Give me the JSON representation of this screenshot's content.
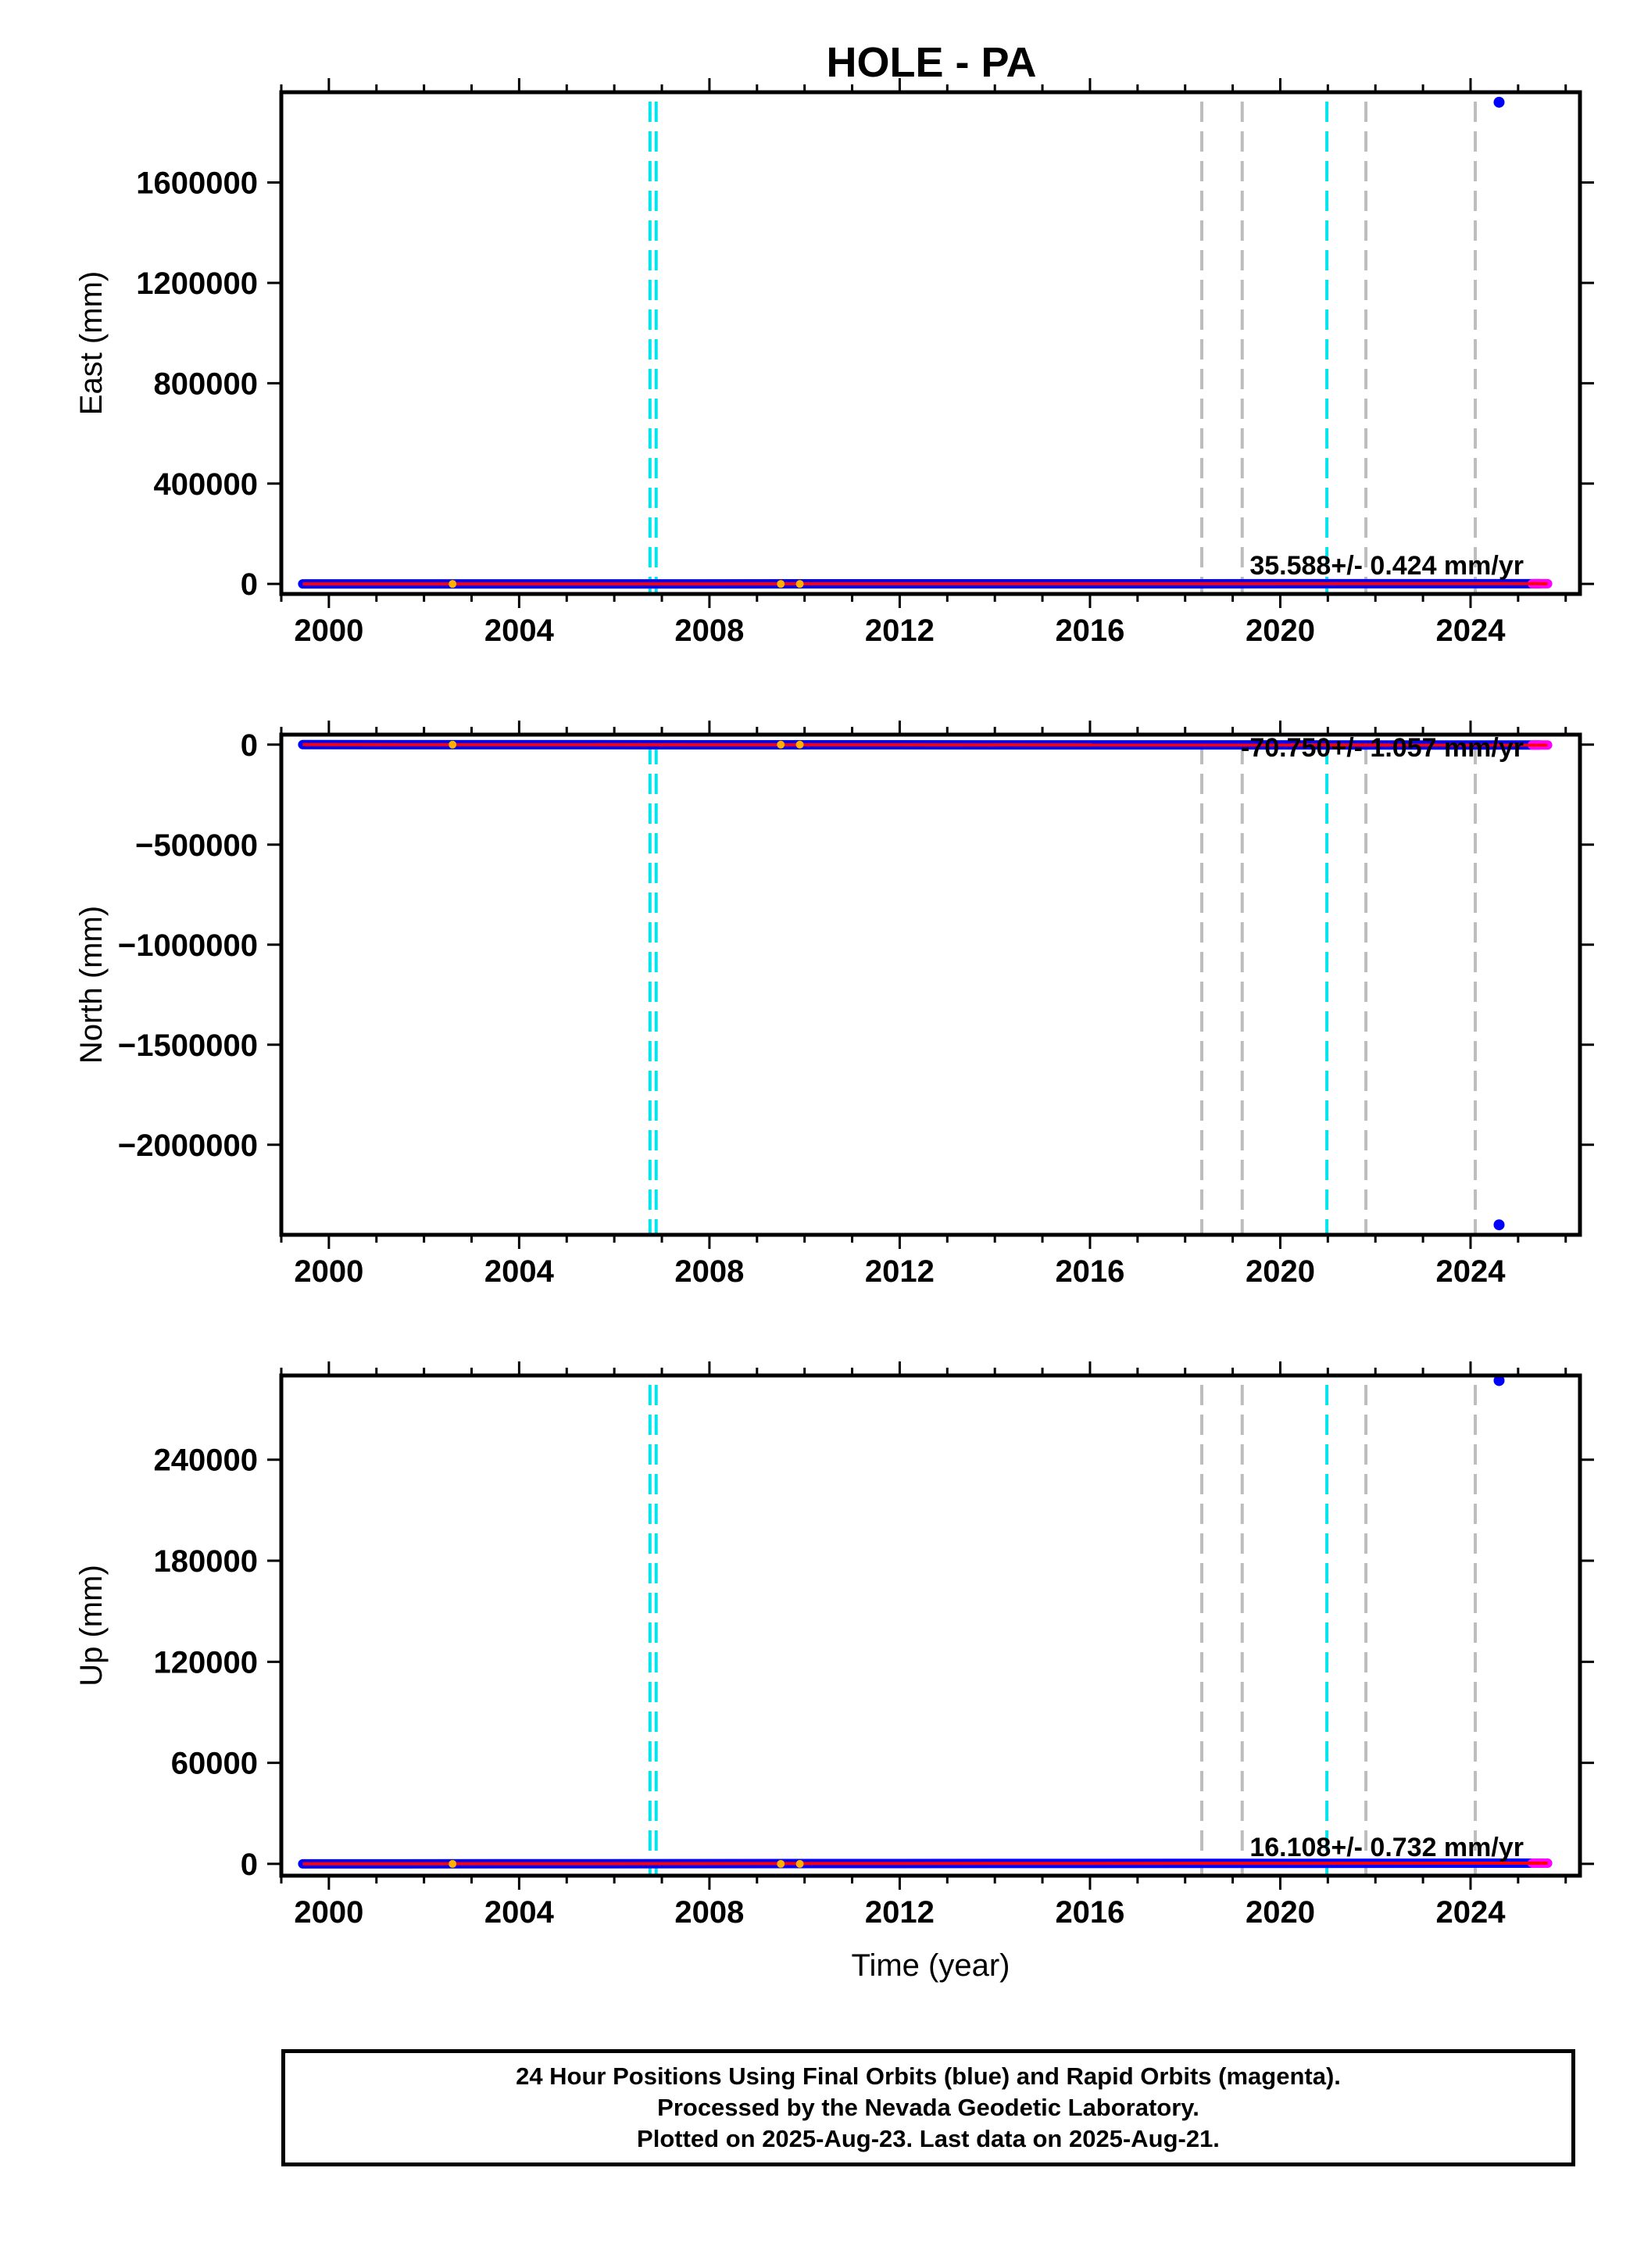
{
  "title": "HOLE - PA",
  "colors": {
    "final_orbits": "#0000ff",
    "rapid_orbits": "#ff00ff",
    "trend_line": "#ff0000",
    "antenna_change": "#00e5ee",
    "other_event": "#bdbdbd",
    "frame": "#000000"
  },
  "chart_data": [
    {
      "type": "scatter",
      "name": "east",
      "ylabel": "East (mm)",
      "xlabel": "",
      "xlim": [
        1999.0,
        2026.3
      ],
      "ylim": [
        -40000,
        1960000
      ],
      "xticks": [
        2000,
        2004,
        2008,
        2012,
        2016,
        2020,
        2024
      ],
      "xtick_labels": [
        "2000",
        "2004",
        "2008",
        "2012",
        "2016",
        "2020",
        "2024"
      ],
      "yticks": [
        0,
        400000,
        800000,
        1200000,
        1600000
      ],
      "ytick_labels": [
        "0",
        "400000",
        "800000",
        "1200000",
        "1600000"
      ],
      "rate_label": "35.588+/- 0.424 mm/yr",
      "series": [
        {
          "name": "final orbits",
          "x": [
            1999.45,
            2025.45
          ],
          "y": [
            0,
            900
          ]
        },
        {
          "name": "rapid orbits",
          "x": [
            2025.3,
            2025.62
          ],
          "y": [
            800,
            900
          ]
        }
      ],
      "outliers": [
        {
          "x": 2024.6,
          "y": 1920000
        }
      ],
      "trend": {
        "x": [
          1999.45,
          2025.62
        ],
        "y": [
          0,
          930
        ]
      }
    },
    {
      "type": "scatter",
      "name": "north",
      "ylabel": "North (mm)",
      "xlabel": "",
      "xlim": [
        1999.0,
        2026.3
      ],
      "ylim": [
        -2450000,
        50000
      ],
      "xticks": [
        2000,
        2004,
        2008,
        2012,
        2016,
        2020,
        2024
      ],
      "xtick_labels": [
        "2000",
        "2004",
        "2008",
        "2012",
        "2016",
        "2020",
        "2024"
      ],
      "yticks": [
        0,
        -500000,
        -1000000,
        -1500000,
        -2000000
      ],
      "ytick_labels": [
        "0",
        "−500000",
        "−1000000",
        "−1500000",
        "−2000000"
      ],
      "rate_label": "-70.750+/- 1.057 mm/yr",
      "series": [
        {
          "name": "final orbits",
          "x": [
            1999.45,
            2025.45
          ],
          "y": [
            0,
            -1840
          ]
        },
        {
          "name": "rapid orbits",
          "x": [
            2025.3,
            2025.62
          ],
          "y": [
            -1800,
            -1850
          ]
        }
      ],
      "outliers": [
        {
          "x": 2024.6,
          "y": -2400000
        }
      ],
      "trend": {
        "x": [
          1999.45,
          2025.62
        ],
        "y": [
          0,
          -1850
        ]
      }
    },
    {
      "type": "scatter",
      "name": "up",
      "ylabel": "Up (mm)",
      "xlabel": "Time (year)",
      "xlim": [
        1999.0,
        2026.3
      ],
      "ylim": [
        -7000,
        290000
      ],
      "xticks": [
        2000,
        2004,
        2008,
        2012,
        2016,
        2020,
        2024
      ],
      "xtick_labels": [
        "2000",
        "2004",
        "2008",
        "2012",
        "2016",
        "2020",
        "2024"
      ],
      "yticks": [
        0,
        60000,
        120000,
        180000,
        240000
      ],
      "ytick_labels": [
        "0",
        "60000",
        "120000",
        "180000",
        "240000"
      ],
      "rate_label": "16.108+/- 0.732 mm/yr",
      "series": [
        {
          "name": "final orbits",
          "x": [
            1999.45,
            2025.45
          ],
          "y": [
            0,
            420
          ]
        },
        {
          "name": "rapid orbits",
          "x": [
            2025.3,
            2025.62
          ],
          "y": [
            400,
            420
          ]
        }
      ],
      "outliers": [
        {
          "x": 2024.6,
          "y": 287000
        }
      ],
      "trend": {
        "x": [
          1999.45,
          2025.62
        ],
        "y": [
          0,
          420
        ]
      }
    }
  ],
  "event_lines": [
    {
      "year": 2006.75,
      "kind": "antenna_change"
    },
    {
      "year": 2006.88,
      "kind": "antenna_change"
    },
    {
      "year": 2018.35,
      "kind": "other_event"
    },
    {
      "year": 2019.2,
      "kind": "other_event"
    },
    {
      "year": 2020.98,
      "kind": "antenna_change"
    },
    {
      "year": 2021.8,
      "kind": "other_event"
    },
    {
      "year": 2024.1,
      "kind": "other_event"
    }
  ],
  "data_gaps": [
    2002.6,
    2009.5,
    2009.9
  ],
  "footer": {
    "line1": "24 Hour Positions Using Final Orbits (blue) and Rapid Orbits (magenta).",
    "line2": "Processed by the Nevada Geodetic Laboratory.",
    "line3": "Plotted on 2025-Aug-23. Last data on 2025-Aug-21."
  }
}
